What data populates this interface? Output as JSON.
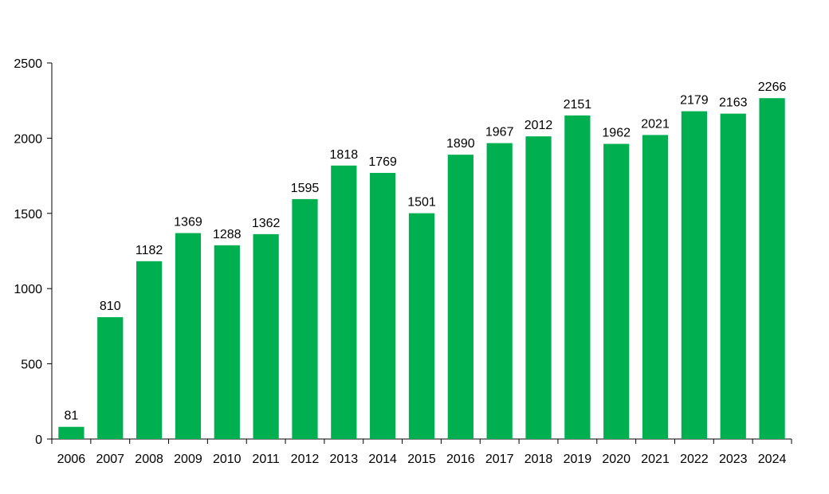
{
  "chart_data": {
    "type": "bar",
    "categories": [
      "2006",
      "2007",
      "2008",
      "2009",
      "2010",
      "2011",
      "2012",
      "2013",
      "2014",
      "2015",
      "2016",
      "2017",
      "2018",
      "2019",
      "2020",
      "2021",
      "2022",
      "2023",
      "2024"
    ],
    "series": [
      {
        "values": [
          81,
          810,
          1182,
          1369,
          1288,
          1362,
          1595,
          1818,
          1769,
          1501,
          1890,
          1967,
          2012,
          2151,
          1962,
          2021,
          2179,
          2163,
          2266
        ]
      }
    ],
    "ylim": [
      0,
      2500
    ],
    "yticks": [
      0,
      500,
      1000,
      1500,
      2000,
      2500
    ],
    "grid": false,
    "data_labels": true,
    "bar_color": "#00b050",
    "axis_color": "#000000"
  }
}
